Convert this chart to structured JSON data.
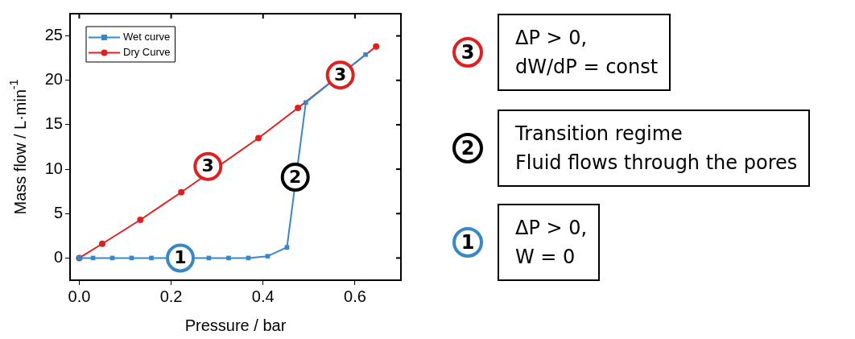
{
  "chart_data": {
    "type": "line",
    "xlabel": "Pressure / bar",
    "ylabel": "Mass flow / L·min$^{-1}$",
    "xlim": [
      -0.02,
      0.7
    ],
    "ylim": [
      -2.5,
      27.5
    ],
    "xticks": [
      {
        "value": 0,
        "label": "0.0"
      },
      {
        "value": 0.2,
        "label": "0.2"
      },
      {
        "value": 0.4,
        "label": "0.4"
      },
      {
        "value": 0.6,
        "label": "0.6"
      }
    ],
    "yticks": [
      0,
      5,
      10,
      15,
      20,
      25
    ],
    "series": [
      {
        "name": "Wet curve",
        "color": "#3a87c8",
        "marker": "square",
        "x": [
          0,
          0.03,
          0.072,
          0.114,
          0.157,
          0.282,
          0.325,
          0.368,
          0.41,
          0.452,
          0.493,
          0.623
        ],
        "values": [
          0,
          0,
          0,
          0,
          0,
          0,
          0,
          0,
          0.2,
          1.2,
          17.5,
          22.9
        ]
      },
      {
        "name": "Dry Curve",
        "color": "#e02020",
        "marker": "circle",
        "x": [
          0,
          0.05,
          0.133,
          0.222,
          0.39,
          0.476,
          0.646
        ],
        "values": [
          0,
          1.6,
          4.3,
          7.4,
          13.5,
          16.9,
          23.8
        ]
      }
    ],
    "legend": "top left",
    "grid": false,
    "annotations": [
      {
        "text": "1",
        "x": 0.22,
        "y": 0
      },
      {
        "text": "3",
        "x": 0.28,
        "y": 10.3
      },
      {
        "text": "2",
        "x": 0.47,
        "y": 9.1
      },
      {
        "text": "3",
        "x": 0.568,
        "y": 20.6
      },
      "3",
      "ΔP > 0,\ndW/dP = const",
      "2",
      "Transition regime\nFluid flows through the pores",
      "1",
      "ΔP > 0,\nW = 0"
    ]
  }
}
